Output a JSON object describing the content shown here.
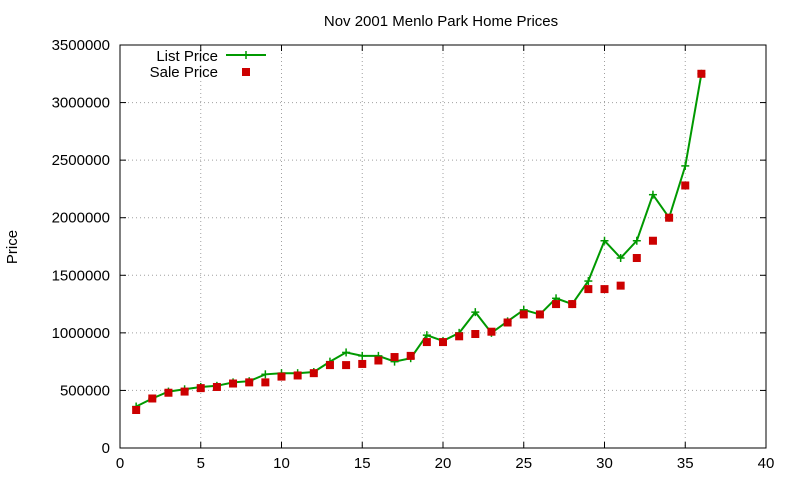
{
  "chart_data": {
    "type": "line",
    "title": "Nov 2001 Menlo Park Home Prices",
    "xlabel": "",
    "ylabel": "Price",
    "xlim": [
      0,
      40
    ],
    "ylim": [
      0,
      3500000
    ],
    "xticks": [
      0,
      5,
      10,
      15,
      20,
      25,
      30,
      35,
      40
    ],
    "yticks": [
      0,
      500000,
      1000000,
      1500000,
      2000000,
      2500000,
      3000000,
      3500000
    ],
    "grid": true,
    "legend_position": "top-left",
    "series": [
      {
        "name": "List Price",
        "style": "line+plus",
        "color": "#009900",
        "points": [
          [
            1,
            360000
          ],
          [
            2,
            430000
          ],
          [
            3,
            490000
          ],
          [
            4,
            510000
          ],
          [
            5,
            530000
          ],
          [
            6,
            540000
          ],
          [
            7,
            570000
          ],
          [
            8,
            580000
          ],
          [
            9,
            640000
          ],
          [
            10,
            650000
          ],
          [
            11,
            650000
          ],
          [
            12,
            660000
          ],
          [
            13,
            750000
          ],
          [
            14,
            830000
          ],
          [
            15,
            800000
          ],
          [
            16,
            800000
          ],
          [
            17,
            750000
          ],
          [
            18,
            780000
          ],
          [
            19,
            980000
          ],
          [
            20,
            930000
          ],
          [
            21,
            1000000
          ],
          [
            22,
            1180000
          ],
          [
            23,
            1000000
          ],
          [
            24,
            1100000
          ],
          [
            25,
            1200000
          ],
          [
            26,
            1160000
          ],
          [
            27,
            1300000
          ],
          [
            28,
            1250000
          ],
          [
            29,
            1450000
          ],
          [
            30,
            1800000
          ],
          [
            31,
            1650000
          ],
          [
            32,
            1800000
          ],
          [
            33,
            2200000
          ],
          [
            34,
            2000000
          ],
          [
            35,
            2450000
          ],
          [
            36,
            3250000
          ]
        ]
      },
      {
        "name": "Sale Price",
        "style": "square",
        "color": "#cc0000",
        "points": [
          [
            1,
            330000
          ],
          [
            2,
            430000
          ],
          [
            3,
            480000
          ],
          [
            4,
            490000
          ],
          [
            5,
            520000
          ],
          [
            6,
            530000
          ],
          [
            7,
            560000
          ],
          [
            8,
            570000
          ],
          [
            9,
            570000
          ],
          [
            10,
            620000
          ],
          [
            11,
            630000
          ],
          [
            12,
            650000
          ],
          [
            13,
            720000
          ],
          [
            14,
            720000
          ],
          [
            15,
            730000
          ],
          [
            16,
            760000
          ],
          [
            17,
            790000
          ],
          [
            18,
            800000
          ],
          [
            19,
            920000
          ],
          [
            20,
            920000
          ],
          [
            21,
            970000
          ],
          [
            22,
            990000
          ],
          [
            23,
            1010000
          ],
          [
            24,
            1090000
          ],
          [
            25,
            1160000
          ],
          [
            26,
            1160000
          ],
          [
            27,
            1250000
          ],
          [
            28,
            1250000
          ],
          [
            29,
            1380000
          ],
          [
            30,
            1380000
          ],
          [
            31,
            1410000
          ],
          [
            32,
            1650000
          ],
          [
            33,
            1800000
          ],
          [
            34,
            2000000
          ],
          [
            35,
            2280000
          ],
          [
            36,
            3250000
          ]
        ]
      }
    ]
  }
}
